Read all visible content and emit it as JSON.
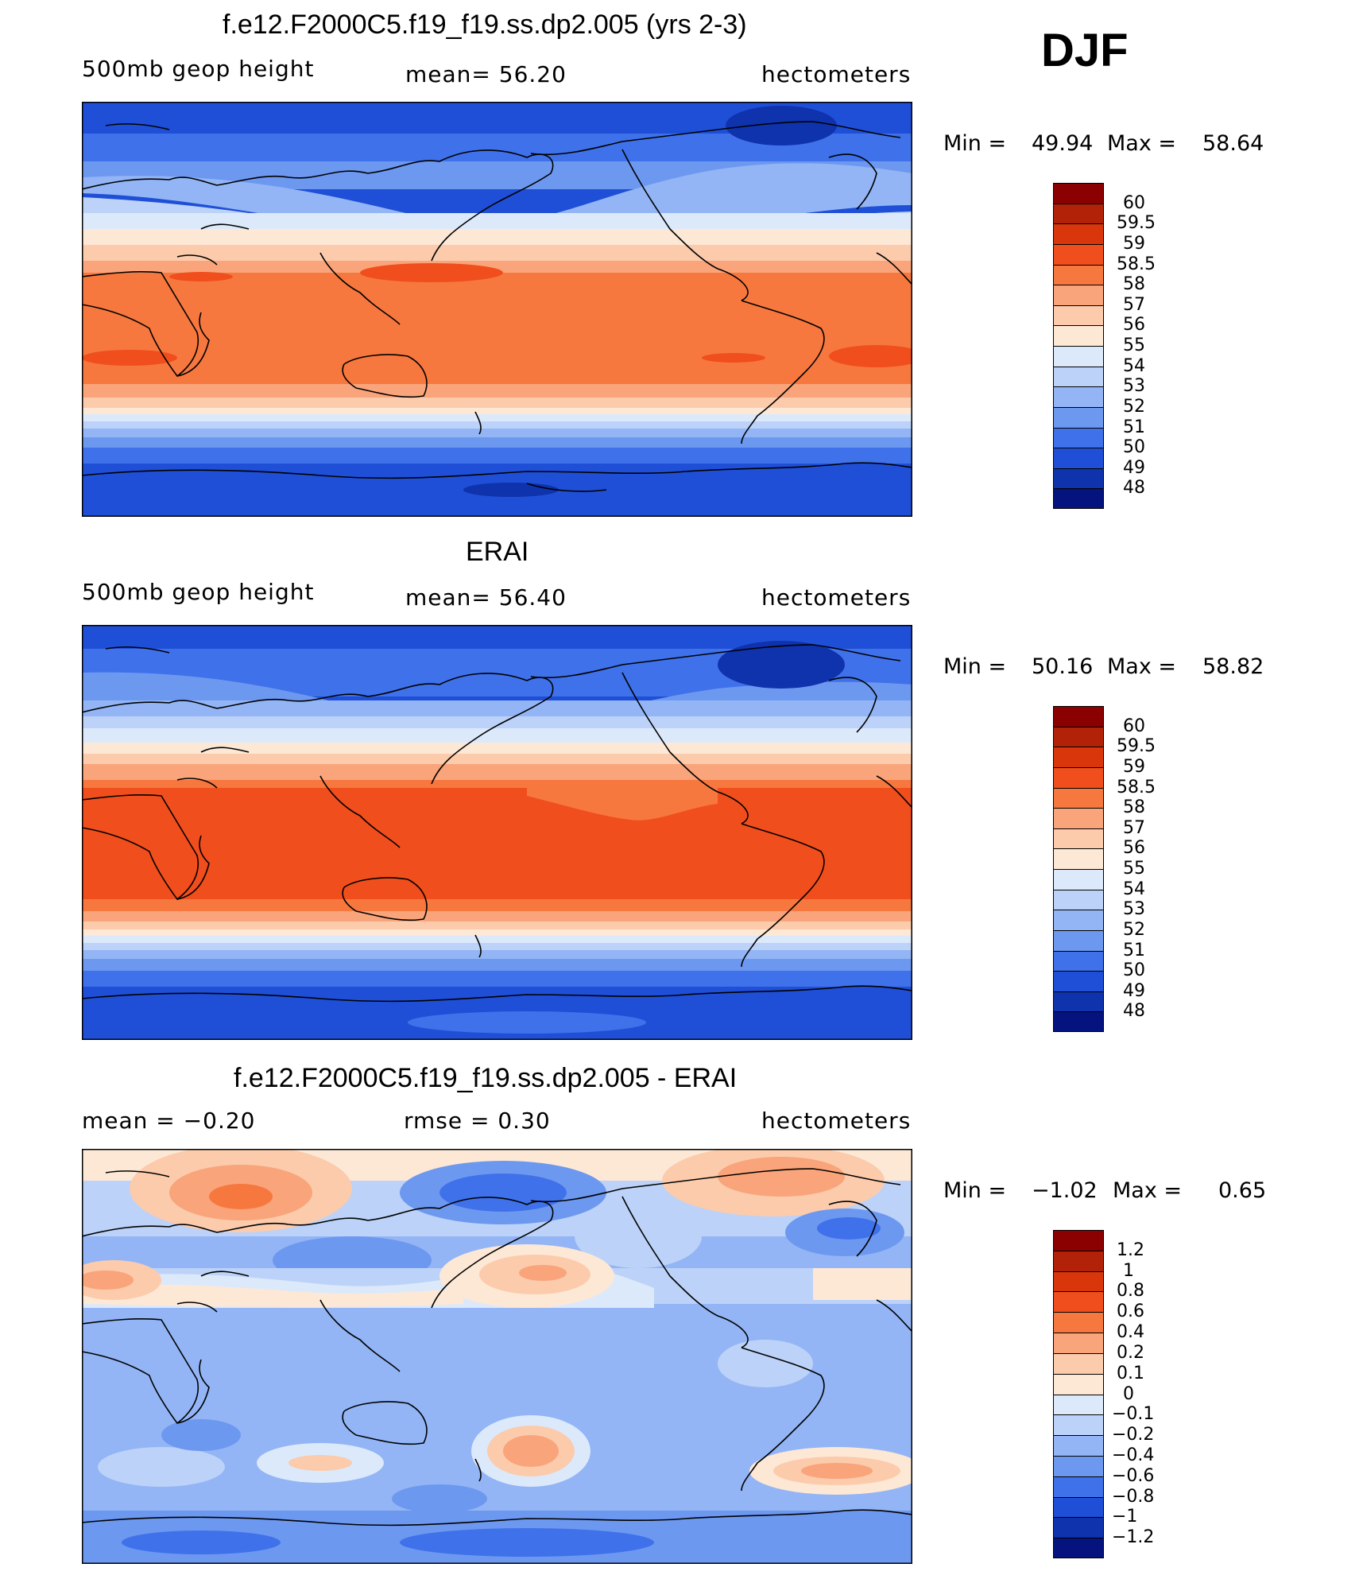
{
  "season": "DJF",
  "panels": [
    {
      "title": "f.e12.F2000C5.f19_f19.ss.dp2.005 (yrs 2-3)",
      "left_label": "500mb  geop  height",
      "center_label": "mean=   56.20",
      "right_label": "hectometers",
      "min_label": "Min  =",
      "min_value": "49.94",
      "max_label": "Max  =",
      "max_value": "58.64",
      "colorbar_labels": [
        "60",
        "59.5",
        "59",
        "58.5",
        "58",
        "57",
        "56",
        "55",
        "54",
        "53",
        "52",
        "51",
        "50",
        "49",
        "48"
      ],
      "colorbar_colors": [
        "#8b0000",
        "#b22208",
        "#d9360c",
        "#f04e1c",
        "#f6783e",
        "#f9a47a",
        "#fbcbac",
        "#fde8d6",
        "#dce9fb",
        "#bcd2f8",
        "#93b5f5",
        "#6d98f0",
        "#3f71ea",
        "#1f4fd6",
        "#0f32ad",
        "#04137d"
      ]
    },
    {
      "title": "ERAI",
      "left_label": "500mb  geop  height",
      "center_label": "mean=   56.40",
      "right_label": "hectometers",
      "min_label": "Min  =",
      "min_value": "50.16",
      "max_label": "Max  =",
      "max_value": "58.82",
      "colorbar_labels": [
        "60",
        "59.5",
        "59",
        "58.5",
        "58",
        "57",
        "56",
        "55",
        "54",
        "53",
        "52",
        "51",
        "50",
        "49",
        "48"
      ],
      "colorbar_colors": [
        "#8b0000",
        "#b22208",
        "#d9360c",
        "#f04e1c",
        "#f6783e",
        "#f9a47a",
        "#fbcbac",
        "#fde8d6",
        "#dce9fb",
        "#bcd2f8",
        "#93b5f5",
        "#6d98f0",
        "#3f71ea",
        "#1f4fd6",
        "#0f32ad",
        "#04137d"
      ]
    },
    {
      "title": "f.e12.F2000C5.f19_f19.ss.dp2.005 - ERAI",
      "left_label": "mean  =     −0.20",
      "center_label": "rmse  =     0.30",
      "right_label": "hectometers",
      "min_label": "Min  =",
      "min_value": "−1.02",
      "max_label": "Max  =",
      "max_value": "0.65",
      "colorbar_labels": [
        "1.2",
        "1",
        "0.8",
        "0.6",
        "0.4",
        "0.2",
        "0.1",
        "0",
        "−0.1",
        "−0.2",
        "−0.4",
        "−0.6",
        "−0.8",
        "−1",
        "−1.2"
      ],
      "colorbar_colors": [
        "#8b0000",
        "#b22208",
        "#d9360c",
        "#f04e1c",
        "#f6783e",
        "#f9a47a",
        "#fbcbac",
        "#fde8d6",
        "#dce9fb",
        "#bcd2f8",
        "#93b5f5",
        "#6d98f0",
        "#3f71ea",
        "#1f4fd6",
        "#0f32ad",
        "#04137d"
      ]
    }
  ]
}
